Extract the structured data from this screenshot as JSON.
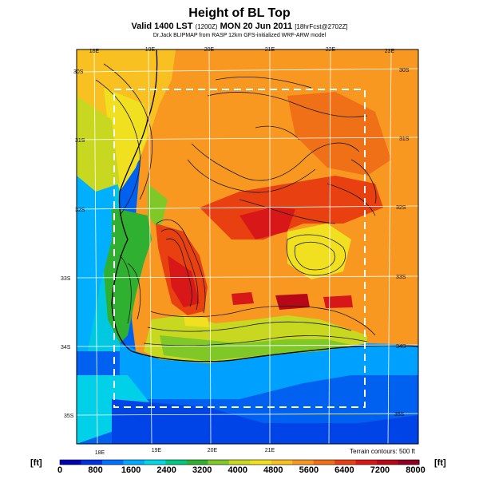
{
  "header": {
    "title": "Height of BL Top",
    "subtitle_main": "Valid 1400 LST",
    "subtitle_small": "(1200Z)",
    "subtitle_date": "MON 20 Jun 2011",
    "subtitle_tail": "[18hrFcst@2702Z]",
    "credit": "Dr.Jack BLIPMAP from RASP 12km GFS-initialized WRF-ARW model"
  },
  "map": {
    "lon_labels_top": [
      "18E",
      "19E",
      "20E",
      "21E",
      "22E",
      "23E"
    ],
    "lon_labels_bottom": [
      "18E",
      "19E",
      "20E",
      "21E"
    ],
    "lat_labels_left": [
      "30S",
      "31S",
      "32S",
      "33S",
      "34S",
      "35S"
    ],
    "lat_labels_right": [
      "30S",
      "31S",
      "32S",
      "33S",
      "34S",
      "35S"
    ],
    "terrain_note": "Terrain contours: 500 ft"
  },
  "colorbar": {
    "unit_left": "[ft]",
    "unit_right": "[ft]",
    "ticks": [
      "0",
      "800",
      "1600",
      "2400",
      "3200",
      "4000",
      "4800",
      "5600",
      "6400",
      "7200",
      "8000"
    ],
    "colors": [
      "#0000b0",
      "#0030e0",
      "#0070ff",
      "#00a8ff",
      "#00d8e8",
      "#00c880",
      "#30b030",
      "#80c828",
      "#c8d820",
      "#f0e020",
      "#f8c020",
      "#f89820",
      "#f07018",
      "#e84010",
      "#d81818",
      "#b80818",
      "#900020"
    ]
  }
}
